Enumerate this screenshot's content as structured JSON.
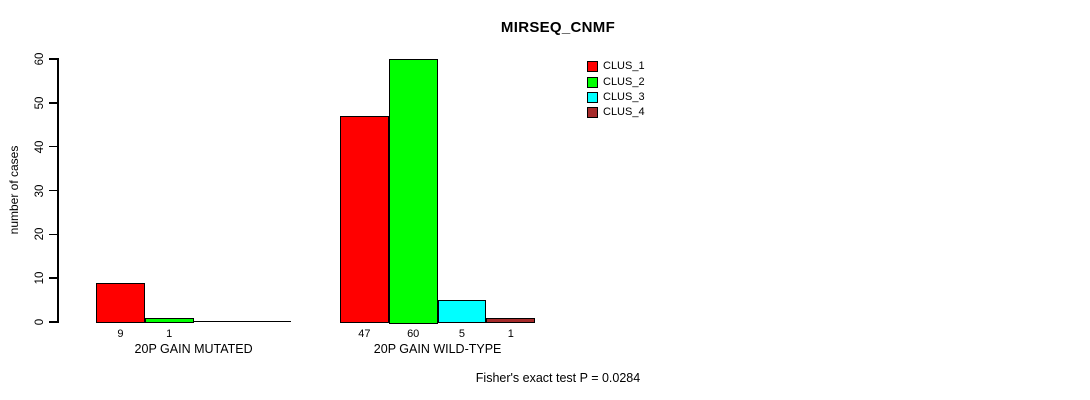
{
  "chart_data": {
    "type": "bar",
    "title": "MIRSEQ_CNMF",
    "xlabel": "",
    "ylabel": "number of cases",
    "categories": [
      "20P GAIN MUTATED",
      "20P GAIN WILD-TYPE"
    ],
    "series": [
      {
        "name": "CLUS_1",
        "color": "#FF0000",
        "values": [
          9,
          47
        ]
      },
      {
        "name": "CLUS_2",
        "color": "#00FF00",
        "values": [
          1,
          60
        ]
      },
      {
        "name": "CLUS_3",
        "color": "#00FFFF",
        "values": [
          0,
          5
        ]
      },
      {
        "name": "CLUS_4",
        "color": "#A52A2A",
        "values": [
          0,
          1
        ]
      }
    ],
    "bar_value_labels": {
      "20P GAIN MUTATED": [
        9,
        1,
        0,
        0
      ],
      "20P GAIN WILD-TYPE": [
        47,
        60,
        5,
        1
      ]
    },
    "zero_value_labels_hidden": true,
    "ylim": [
      0,
      60
    ],
    "yticks": [
      0,
      10,
      20,
      30,
      40,
      50,
      60
    ],
    "grid": false,
    "legend_position": "top-right-inside",
    "legend_entries": [
      "CLUS_1",
      "CLUS_2",
      "CLUS_3",
      "CLUS_4"
    ],
    "annotation": "Fisher's exact test P = 0.0284",
    "axis_color": "#000000",
    "bar_border_color": "#000000",
    "background_color": "#FFFFFF"
  }
}
